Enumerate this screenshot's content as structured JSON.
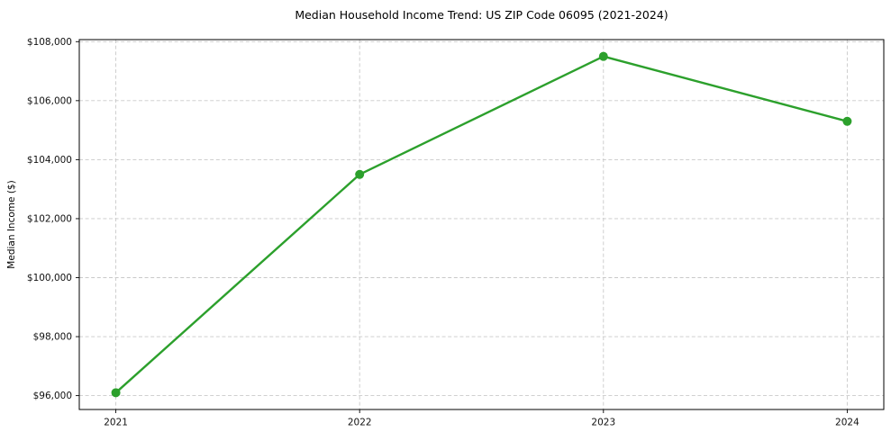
{
  "chart_data": {
    "type": "line",
    "title": "Median Household Income Trend: US ZIP Code 06095 (2021-2024)",
    "xlabel": "",
    "ylabel": "Median Income ($)",
    "x": [
      2021,
      2022,
      2023,
      2024
    ],
    "series": [
      {
        "name": "Median Household Income",
        "values": [
          96100,
          103500,
          107500,
          105300
        ]
      }
    ],
    "xticks": [
      {
        "value": 2021,
        "label": "2021"
      },
      {
        "value": 2022,
        "label": "2022"
      },
      {
        "value": 2023,
        "label": "2023"
      },
      {
        "value": 2024,
        "label": "2024"
      }
    ],
    "yticks": [
      {
        "value": 96000,
        "label": "$96,000"
      },
      {
        "value": 98000,
        "label": "$98,000"
      },
      {
        "value": 100000,
        "label": "$100,000"
      },
      {
        "value": 102000,
        "label": "$102,000"
      },
      {
        "value": 104000,
        "label": "$104,000"
      },
      {
        "value": 106000,
        "label": "$106,000"
      },
      {
        "value": 108000,
        "label": "$108,000"
      }
    ],
    "xlim": [
      2020.85,
      2024.15
    ],
    "ylim": [
      95530,
      108070
    ],
    "grid": true,
    "legend": "none",
    "line_color": "#2ca02c",
    "marker": "circle",
    "grid_color": "#c9c9c9",
    "background_color": "#ffffff"
  }
}
